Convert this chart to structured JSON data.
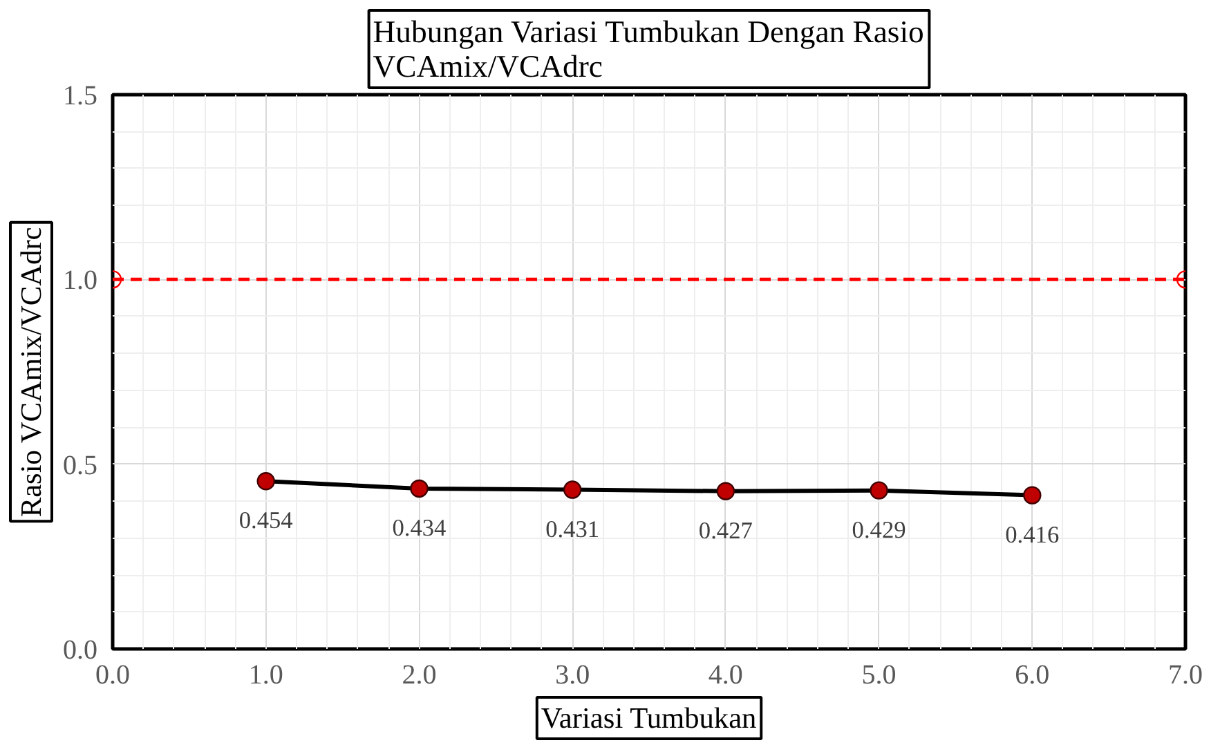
{
  "chart_data": {
    "type": "line",
    "title": "Hubungan Variasi Tumbukan Dengan Rasio\nVCAmix/VCAdrc",
    "xlabel": "Variasi Tumbukan",
    "ylabel": "Rasio VCAmix/VCAdrc",
    "series": [
      {
        "x": [
          1,
          2,
          3,
          4,
          5,
          6
        ],
        "values": [
          0.454,
          0.434,
          0.431,
          0.427,
          0.429,
          0.416
        ],
        "color": "#000000",
        "colors": [
          "#c00000",
          "#c00000",
          "#c00000",
          "#c00000",
          "#c00000",
          "#c00000"
        ],
        "marker": "circle",
        "line_style": "solid",
        "value_labels": [
          "0.454",
          "0.434",
          "0.431",
          "0.427",
          "0.429",
          "0.416"
        ]
      },
      {
        "x": [
          0,
          7
        ],
        "values": [
          1.0,
          1.0
        ],
        "color": "#ff0000",
        "marker": "circle",
        "line_style": "dashed"
      }
    ],
    "xlim": [
      0,
      7
    ],
    "xticks": [
      {
        "value": 0,
        "label": "0.0"
      },
      {
        "value": 1,
        "label": "1.0"
      },
      {
        "value": 2,
        "label": "2.0"
      },
      {
        "value": 3,
        "label": "3.0"
      },
      {
        "value": 4,
        "label": "4.0"
      },
      {
        "value": 5,
        "label": "5.0"
      },
      {
        "value": 6,
        "label": "6.0"
      },
      {
        "value": 7,
        "label": "7.0"
      }
    ],
    "ylim": [
      0,
      1.5
    ],
    "yticks": [
      {
        "value": 0,
        "label": "0.0"
      },
      {
        "value": 0.5,
        "label": "0.5"
      },
      {
        "value": 1.0,
        "label": "1.0"
      },
      {
        "value": 1.5,
        "label": "1.5"
      }
    ],
    "grid": true
  }
}
